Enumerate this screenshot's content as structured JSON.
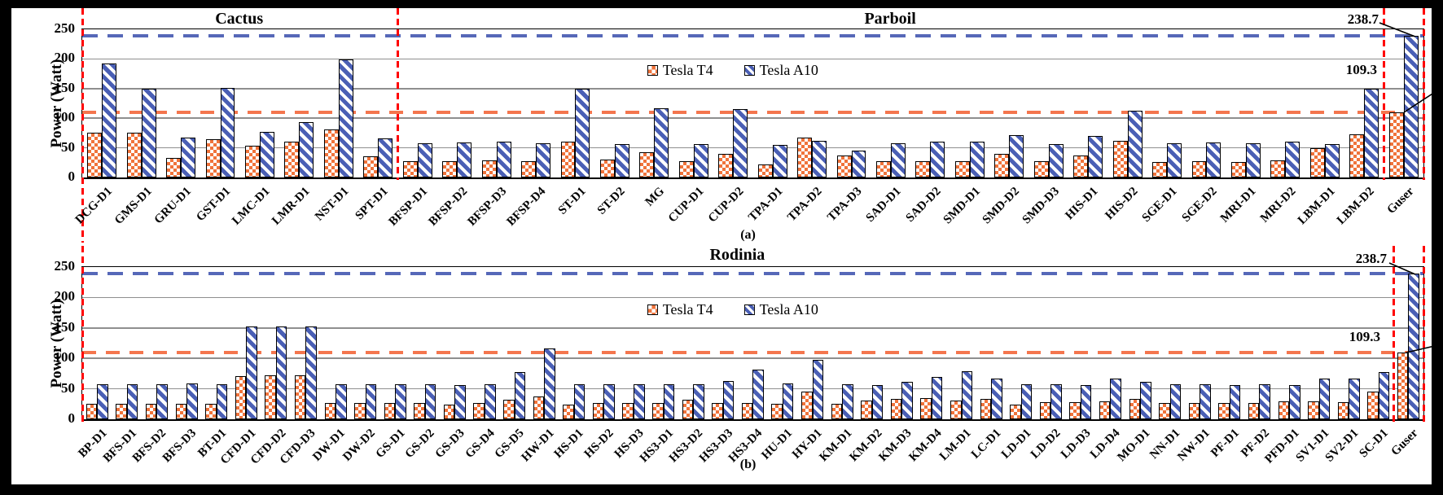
{
  "page": {
    "background": "#000000",
    "panel_background": "#ffffff"
  },
  "colors": {
    "t4_fill": "#f0733b",
    "a10_fill": "#4a5fb5",
    "t4_ref_line": "#f4764e",
    "a10_ref_line": "#5668b8",
    "separator_red": "#ff0000",
    "gridline": "#8f8f8f",
    "axis": "#000000"
  },
  "chart_data": [
    {
      "type": "bar",
      "id": "a",
      "sublabel": "(a)",
      "ylabel": "Power (Watt)",
      "ylim": [
        0,
        250
      ],
      "yticks": [
        0,
        50,
        100,
        150,
        200,
        250
      ],
      "grid": true,
      "legend_position": "inside-top-center",
      "sections": [
        {
          "label": "Cactus",
          "center_pct": 11.76
        },
        {
          "label": "Parboil",
          "center_pct": 60.3
        }
      ],
      "separator_positions_pct": [
        0,
        23.53,
        97.06,
        100
      ],
      "ref_lines": [
        {
          "value": 238.7,
          "series": "Tesla A10"
        },
        {
          "value": 109.3,
          "series": "Tesla T4"
        }
      ],
      "annotations": [
        {
          "text": "238.7"
        },
        {
          "text": "109.3"
        }
      ],
      "categories": [
        "DCG-D1",
        "GMS-D1",
        "GRU-D1",
        "GST-D1",
        "LMC-D1",
        "LMR-D1",
        "NST-D1",
        "SPT-D1",
        "BFSP-D1",
        "BFSP-D2",
        "BFSP-D3",
        "BFSP-D4",
        "ST-D1",
        "ST-D2",
        "MG",
        "CUP-D1",
        "CUP-D2",
        "TPA-D1",
        "TPA-D2",
        "TPA-D3",
        "SAD-D1",
        "SAD-D2",
        "SMD-D1",
        "SMD-D2",
        "SMD-D3",
        "HIS-D1",
        "HIS-D2",
        "SGE-D1",
        "SGE-D2",
        "MRI-D1",
        "MRI-D2",
        "LBM-D1",
        "LBM-D2",
        "Guser"
      ],
      "series": [
        {
          "name": "Tesla T4",
          "values": [
            76,
            75,
            33,
            64,
            53,
            60,
            81,
            36,
            28,
            27,
            29,
            27,
            60,
            30,
            42,
            28,
            40,
            22,
            68,
            37,
            28,
            28,
            28,
            40,
            28,
            37,
            62,
            26,
            27,
            26,
            29,
            50,
            73,
            109.3
          ]
        },
        {
          "name": "Tesla A10",
          "values": [
            192,
            150,
            67,
            151,
            77,
            93,
            199,
            66,
            58,
            59,
            60,
            58,
            150,
            57,
            117,
            57,
            116,
            55,
            62,
            45,
            58,
            61,
            60,
            71,
            57,
            70,
            113,
            58,
            59,
            58,
            60,
            57,
            150,
            238.7
          ]
        }
      ]
    },
    {
      "type": "bar",
      "id": "b",
      "sublabel": "(b)",
      "ylabel": "Power (Watt)",
      "ylim": [
        0,
        250
      ],
      "yticks": [
        0,
        50,
        100,
        150,
        200,
        250
      ],
      "grid": true,
      "legend_position": "inside-top-center",
      "sections": [
        {
          "label": "Rodinia",
          "center_pct": 48.9
        }
      ],
      "separator_positions_pct": [
        0,
        97.78,
        100
      ],
      "ref_lines": [
        {
          "value": 238.7,
          "series": "Tesla A10"
        },
        {
          "value": 109.3,
          "series": "Tesla T4"
        }
      ],
      "annotations": [
        {
          "text": "238.7"
        },
        {
          "text": "109.3"
        }
      ],
      "categories": [
        "BP-D1",
        "BFS-D1",
        "BFS-D2",
        "BFS-D3",
        "BT-D1",
        "CFD-D1",
        "CFD-D2",
        "CFD-D3",
        "DW-D1",
        "DW-D2",
        "GS-D1",
        "GS-D2",
        "GS-D3",
        "GS-D4",
        "GS-D5",
        "HW-D1",
        "HS-D1",
        "HS-D2",
        "HS-D3",
        "HS3-D1",
        "HS3-D2",
        "HS3-D3",
        "HS3-D4",
        "HU-D1",
        "HY-D1",
        "KM-D1",
        "KM-D2",
        "KM-D3",
        "KM-D4",
        "LM-D1",
        "LC-D1",
        "LD-D1",
        "LD-D2",
        "LD-D3",
        "LD-D4",
        "MO-D1",
        "NN-D1",
        "NW-D1",
        "PF-D1",
        "PF-D2",
        "PFD-D1",
        "SV1-D1",
        "SV2-D1",
        "SC-D1",
        "Guser"
      ],
      "series": [
        {
          "name": "Tesla T4",
          "values": [
            25,
            26,
            26,
            26,
            26,
            71,
            72,
            72,
            27,
            27,
            27,
            27,
            24,
            27,
            32,
            38,
            24,
            27,
            27,
            27,
            32,
            27,
            27,
            26,
            45,
            26,
            31,
            33,
            35,
            31,
            33,
            24,
            28,
            28,
            30,
            33,
            27,
            27,
            27,
            27,
            29,
            29,
            28,
            46,
            109.3
          ]
        },
        {
          "name": "Tesla A10",
          "values": [
            57,
            58,
            58,
            59,
            58,
            153,
            153,
            152,
            57,
            58,
            57,
            57,
            56,
            58,
            77,
            116,
            58,
            57,
            58,
            57,
            58,
            63,
            81,
            59,
            97,
            58,
            56,
            62,
            69,
            79,
            67,
            58,
            57,
            56,
            67,
            62,
            58,
            58,
            56,
            58,
            56,
            67,
            67,
            78,
            238.7
          ]
        }
      ]
    }
  ],
  "legend": {
    "t4_label": "Tesla T4",
    "a10_label": "Tesla A10"
  }
}
